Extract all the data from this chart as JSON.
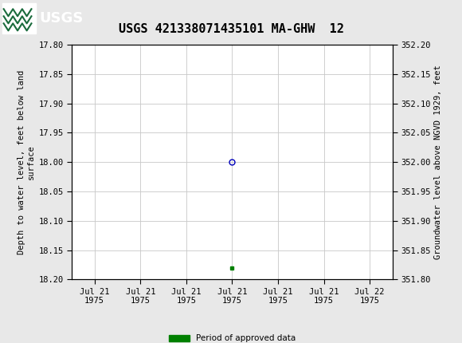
{
  "title": "USGS 421338071435101 MA-GHW  12",
  "header_bg_color": "#1a6b3c",
  "plot_bg_color": "#ffffff",
  "fig_bg_color": "#e8e8e8",
  "grid_color": "#c8c8c8",
  "left_ylabel": "Depth to water level, feet below land\nsurface",
  "right_ylabel": "Groundwater level above NGVD 1929, feet",
  "ylim_left_top": 17.8,
  "ylim_left_bottom": 18.2,
  "ylim_right_bottom": 351.8,
  "ylim_right_top": 352.2,
  "yticks_left": [
    17.8,
    17.85,
    17.9,
    17.95,
    18.0,
    18.05,
    18.1,
    18.15,
    18.2
  ],
  "yticks_right": [
    351.8,
    351.85,
    351.9,
    351.95,
    352.0,
    352.05,
    352.1,
    352.15,
    352.2
  ],
  "data_point_x": 3,
  "data_point_y_depth": 18.0,
  "data_point_marker": "o",
  "data_point_color": "#0000bb",
  "data_point_facecolor": "none",
  "data_point_size": 5,
  "data_point_edgewidth": 1.0,
  "approved_x": 3,
  "approved_y_depth": 18.18,
  "approved_color": "#008000",
  "approved_marker": "s",
  "approved_size": 3,
  "legend_label": "Period of approved data",
  "font_family": "DejaVu Sans Mono",
  "title_fontsize": 11,
  "axis_label_fontsize": 7.5,
  "tick_fontsize": 7.5,
  "legend_fontsize": 7.5,
  "tick_labels": [
    "Jul 21\n1975",
    "Jul 21\n1975",
    "Jul 21\n1975",
    "Jul 21\n1975",
    "Jul 21\n1975",
    "Jul 21\n1975",
    "Jul 22\n1975"
  ],
  "xlim": [
    -0.5,
    6.5
  ]
}
